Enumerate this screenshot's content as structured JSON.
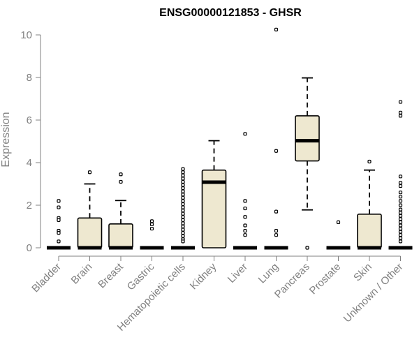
{
  "chart_data": {
    "type": "boxplot",
    "title": "ENSG00000121853 - GHSR",
    "ylabel": "Expression",
    "xlabel": "",
    "ylim": [
      0,
      10
    ],
    "yticks": [
      0,
      2,
      4,
      6,
      8,
      10
    ],
    "grid": false,
    "box_fill": "#EEE8D0",
    "categories": [
      "Bladder",
      "Brain",
      "Breast",
      "Gastric",
      "Hematopoietic cells",
      "Kidney",
      "Liver",
      "Lung",
      "Pancreas",
      "Prostate",
      "Skin",
      "Unknown / Other"
    ],
    "boxes": [
      {
        "q1": 0,
        "median": 0,
        "q3": 0,
        "whisker_low": 0,
        "whisker_high": 0,
        "outliers": [
          2.2,
          1.9,
          1.4,
          1.3,
          0.8,
          0.7,
          0.3
        ]
      },
      {
        "q1": 0,
        "median": 0,
        "q3": 1.4,
        "whisker_low": 0,
        "whisker_high": 3.0,
        "outliers": [
          3.55
        ]
      },
      {
        "q1": 0,
        "median": 0,
        "q3": 1.12,
        "whisker_low": 0,
        "whisker_high": 2.22,
        "outliers": [
          3.45,
          3.1
        ]
      },
      {
        "q1": 0,
        "median": 0,
        "q3": 0,
        "whisker_low": 0,
        "whisker_high": 0,
        "outliers": [
          1.25,
          1.1,
          0.9
        ]
      },
      {
        "q1": 0,
        "median": 0,
        "q3": 0,
        "whisker_low": 0,
        "whisker_high": 0,
        "outliers": [
          3.7,
          3.55,
          3.4,
          3.25,
          3.1,
          2.95,
          2.8,
          2.65,
          2.5,
          2.35,
          2.2,
          2.05,
          1.9,
          1.75,
          1.6,
          1.45,
          1.3,
          1.15,
          1.0,
          0.85,
          0.7,
          0.55,
          0.4,
          0.3
        ]
      },
      {
        "q1": 0,
        "median": 3.08,
        "q3": 3.65,
        "whisker_low": 0,
        "whisker_high": 5.03,
        "outliers": []
      },
      {
        "q1": 0,
        "median": 0,
        "q3": 0,
        "whisker_low": 0,
        "whisker_high": 0,
        "outliers": [
          5.35,
          2.2,
          1.85,
          1.45,
          1.05,
          0.8,
          0.6
        ]
      },
      {
        "q1": 0,
        "median": 0,
        "q3": 0,
        "whisker_low": 0,
        "whisker_high": 0,
        "outliers": [
          10.25,
          4.55,
          1.7,
          0.8,
          0.6
        ]
      },
      {
        "q1": 4.08,
        "median": 5.03,
        "q3": 6.2,
        "whisker_low": 1.78,
        "whisker_high": 7.98,
        "outliers": [
          0
        ]
      },
      {
        "q1": 0,
        "median": 0,
        "q3": 0,
        "whisker_low": 0,
        "whisker_high": 0,
        "outliers": [
          1.2
        ]
      },
      {
        "q1": 0,
        "median": 0,
        "q3": 1.58,
        "whisker_low": 0,
        "whisker_high": 3.65,
        "outliers": [
          4.05
        ]
      },
      {
        "q1": 0,
        "median": 0,
        "q3": 0,
        "whisker_low": 0,
        "whisker_high": 0,
        "outliers": [
          6.85,
          6.35,
          6.2,
          3.35,
          3.05,
          2.9,
          2.6,
          2.4,
          2.2,
          2.0,
          1.8,
          1.65,
          1.5,
          1.35,
          1.2,
          1.05,
          0.9,
          0.75,
          0.6,
          0.45,
          0.3
        ]
      }
    ]
  }
}
